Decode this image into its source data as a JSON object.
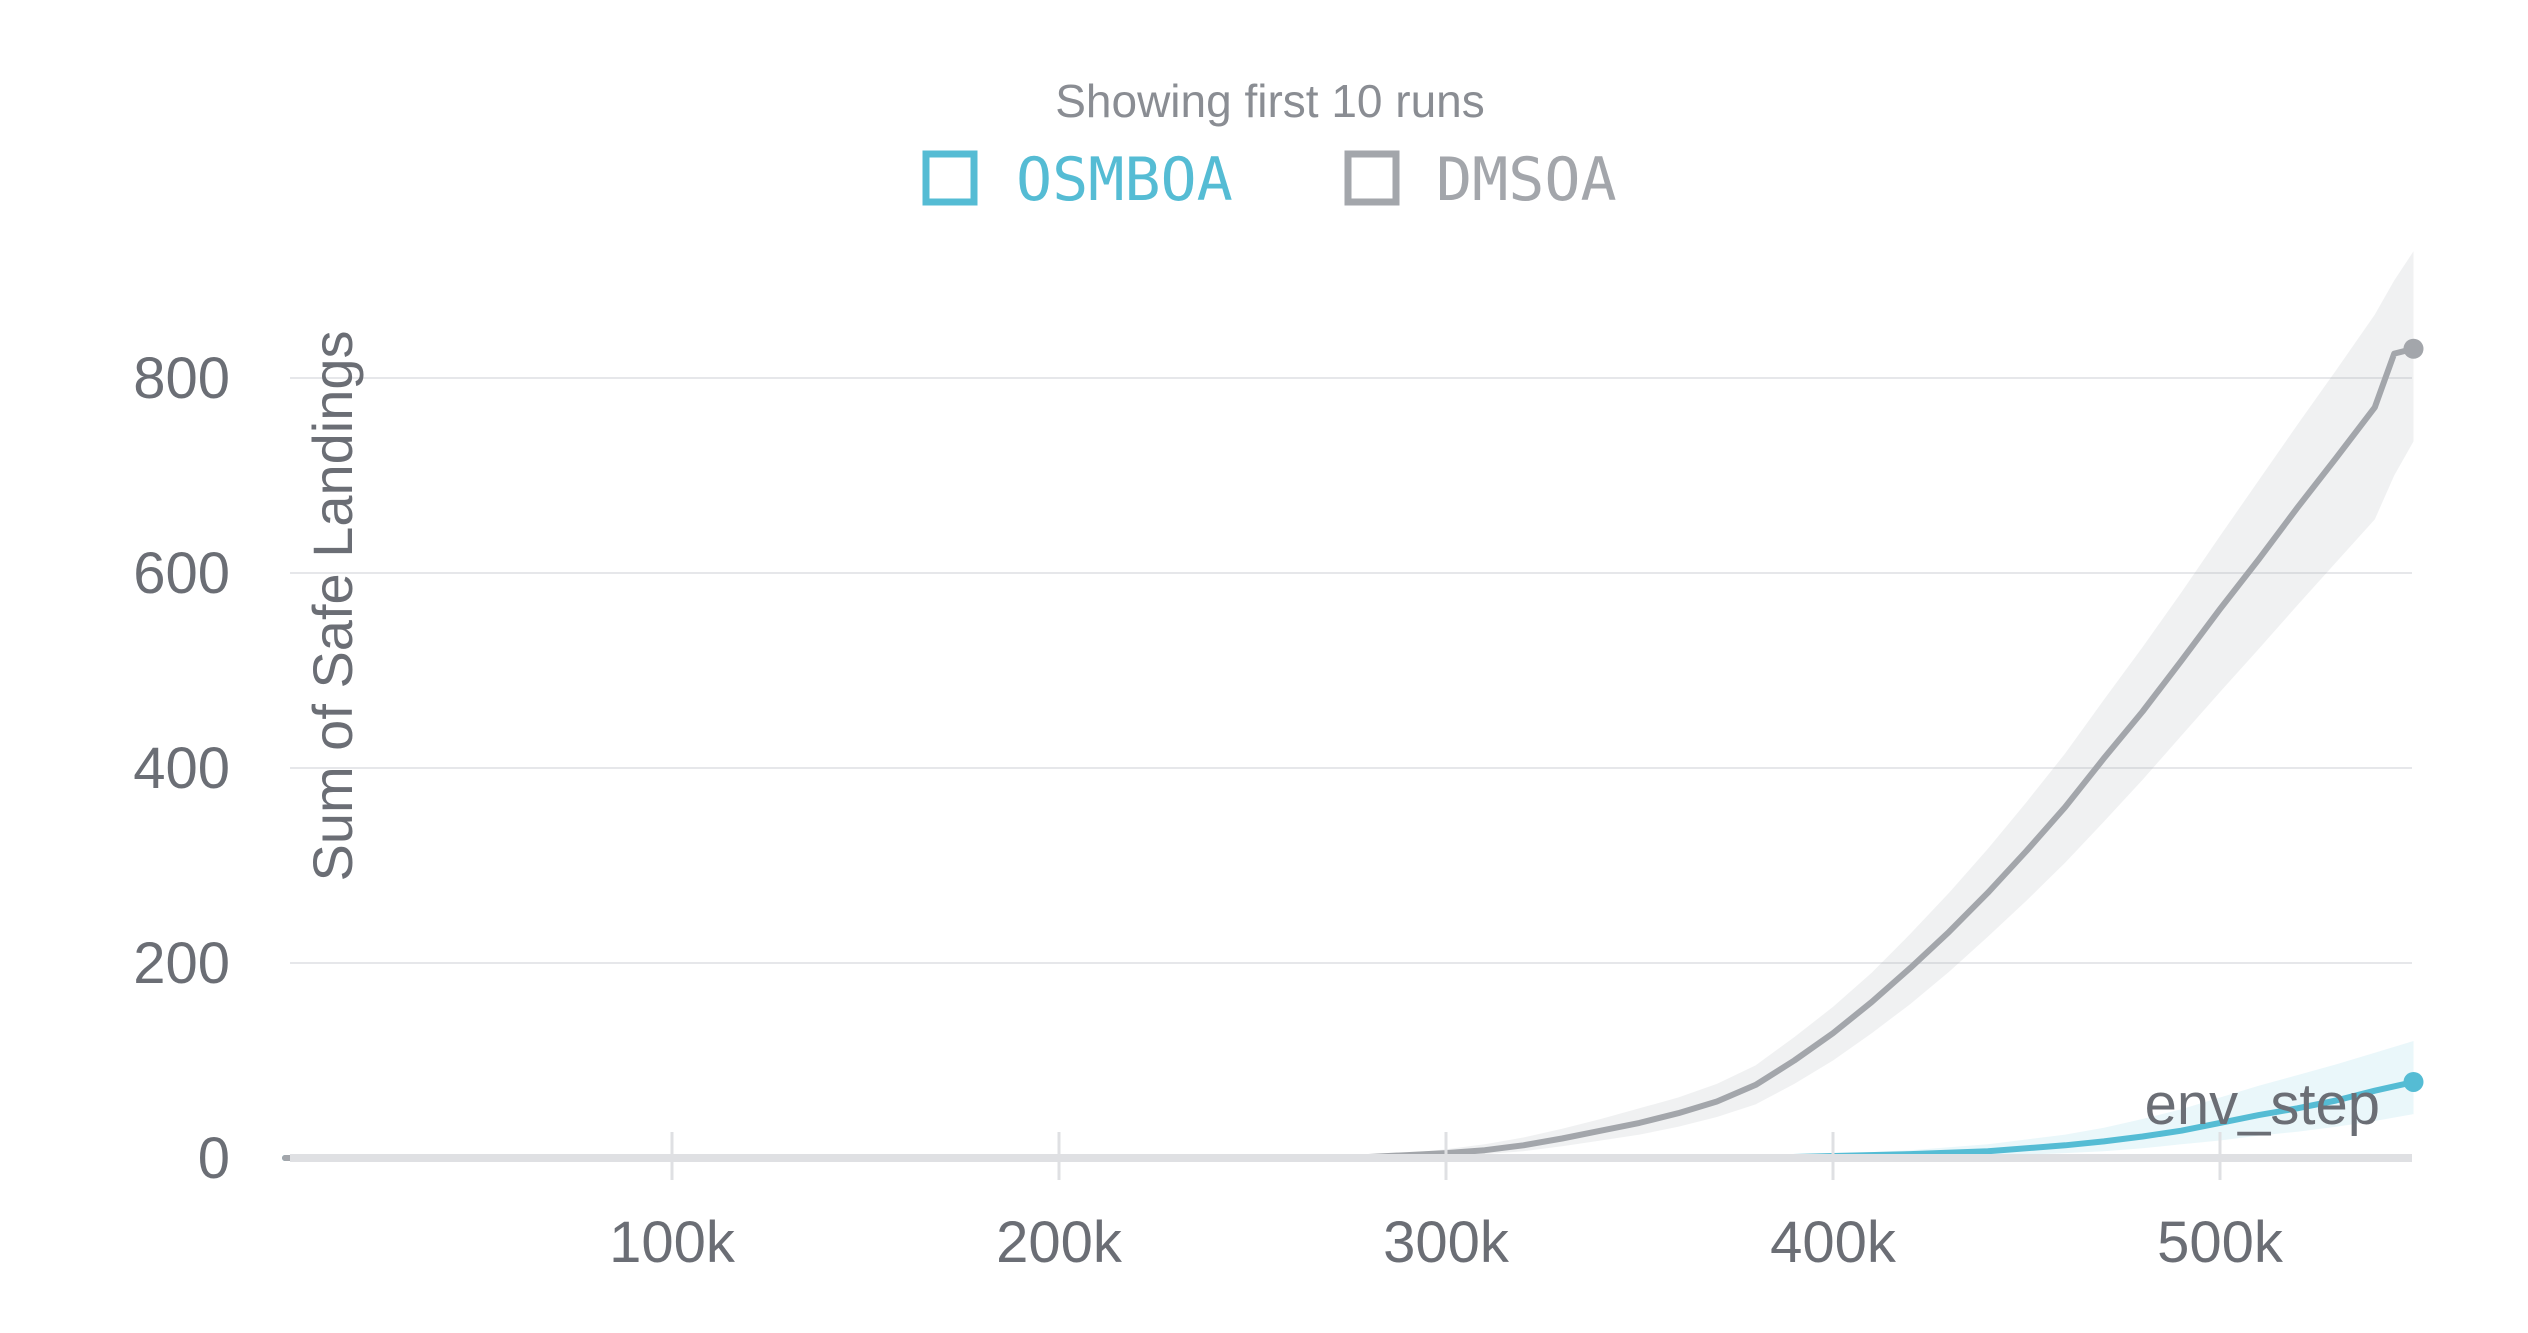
{
  "chart_data": {
    "type": "line",
    "title": "Showing first 10 runs",
    "xlabel": "env_step",
    "ylabel": "Sum of Safe Landings",
    "xlim": [
      0,
      550000
    ],
    "ylim": [
      0,
      930
    ],
    "x_ticks": [
      100000,
      200000,
      300000,
      400000,
      500000
    ],
    "x_tick_labels": [
      "100k",
      "200k",
      "300k",
      "400k",
      "500k"
    ],
    "y_ticks": [
      0,
      200,
      400,
      600,
      800
    ],
    "y_tick_labels": [
      "0",
      "200",
      "400",
      "600",
      "800"
    ],
    "grid": true,
    "legend_position": "top-center",
    "series": [
      {
        "name": "OSMBOA",
        "color": "#55bcd4",
        "x": [
          0,
          380000,
          400000,
          420000,
          440000,
          460000,
          470000,
          480000,
          490000,
          500000,
          510000,
          520000,
          530000,
          540000,
          550000
        ],
        "y": [
          0,
          0,
          2,
          4,
          7,
          13,
          17,
          22,
          28,
          36,
          44,
          51,
          59,
          69,
          78
        ],
        "band_low": [
          0,
          0,
          0,
          1,
          2,
          5,
          7,
          10,
          14,
          18,
          23,
          27,
          32,
          38,
          45
        ],
        "band_high": [
          0,
          1,
          4,
          8,
          14,
          24,
          31,
          40,
          50,
          62,
          74,
          85,
          96,
          108,
          120
        ]
      },
      {
        "name": "DMSOA",
        "color": "#a3a6ab",
        "x": [
          0,
          270000,
          280000,
          290000,
          300000,
          310000,
          320000,
          330000,
          340000,
          350000,
          360000,
          370000,
          380000,
          390000,
          400000,
          410000,
          420000,
          430000,
          440000,
          450000,
          460000,
          470000,
          480000,
          490000,
          500000,
          510000,
          520000,
          530000,
          540000,
          545000,
          550000
        ],
        "y": [
          0,
          0,
          1,
          3,
          5,
          8,
          13,
          20,
          28,
          36,
          46,
          58,
          75,
          100,
          128,
          160,
          195,
          232,
          272,
          315,
          360,
          410,
          458,
          510,
          563,
          614,
          667,
          718,
          770,
          825,
          830
        ],
        "band_low": [
          0,
          0,
          0,
          1,
          2,
          4,
          7,
          12,
          18,
          24,
          32,
          42,
          55,
          76,
          100,
          128,
          158,
          191,
          227,
          264,
          303,
          345,
          388,
          433,
          478,
          522,
          567,
          611,
          655,
          700,
          735
        ],
        "band_high": [
          0,
          0,
          2,
          5,
          9,
          14,
          21,
          30,
          40,
          51,
          62,
          76,
          95,
          124,
          155,
          190,
          230,
          272,
          317,
          365,
          415,
          470,
          524,
          580,
          638,
          695,
          752,
          808,
          865,
          900,
          930
        ]
      }
    ]
  }
}
